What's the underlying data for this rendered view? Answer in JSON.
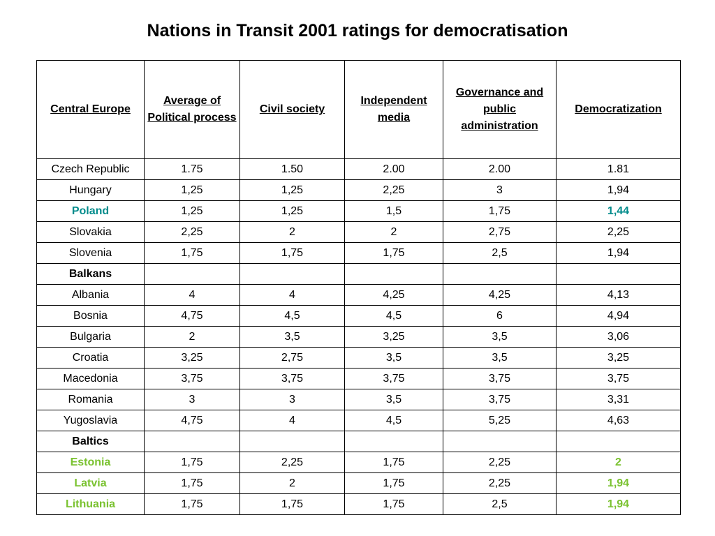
{
  "title": "Nations in Transit 2001 ratings for democratisation",
  "colors": {
    "poland": "#008b8b",
    "baltic": "#7ac230"
  },
  "table": {
    "headers": [
      "Central Europe",
      "Average of Political process",
      "Civil society",
      "Independent media",
      "Governance and public administration",
      "Democratization"
    ],
    "rows": [
      {
        "type": "data",
        "cells": [
          "Czech Republic",
          "1.75",
          "1.50",
          "2.00",
          "2.00",
          "1.81"
        ]
      },
      {
        "type": "data",
        "cells": [
          "Hungary",
          "1,25",
          "1,25",
          "2,25",
          "3",
          "1,94"
        ]
      },
      {
        "type": "data",
        "highlight": "poland",
        "cells": [
          "Poland",
          "1,25",
          "1,25",
          "1,5",
          "1,75",
          "1,44"
        ]
      },
      {
        "type": "data",
        "cells": [
          "Slovakia",
          "2,25",
          "2",
          "2",
          "2,75",
          "2,25"
        ]
      },
      {
        "type": "data",
        "cells": [
          "Slovenia",
          "1,75",
          "1,75",
          "1,75",
          "2,5",
          "1,94"
        ]
      },
      {
        "type": "group",
        "cells": [
          "Balkans",
          "",
          "",
          "",
          "",
          ""
        ]
      },
      {
        "type": "data",
        "cells": [
          "Albania",
          "4",
          "4",
          "4,25",
          "4,25",
          "4,13"
        ]
      },
      {
        "type": "data",
        "cells": [
          "Bosnia",
          "4,75",
          "4,5",
          "4,5",
          "6",
          "4,94"
        ]
      },
      {
        "type": "data",
        "cells": [
          "Bulgaria",
          "2",
          "3,5",
          "3,25",
          "3,5",
          "3,06"
        ]
      },
      {
        "type": "data",
        "cells": [
          "Croatia",
          "3,25",
          "2,75",
          "3,5",
          "3,5",
          "3,25"
        ]
      },
      {
        "type": "data",
        "cells": [
          "Macedonia",
          "3,75",
          "3,75",
          "3,75",
          "3,75",
          "3,75"
        ]
      },
      {
        "type": "data",
        "cells": [
          "Romania",
          "3",
          "3",
          "3,5",
          "3,75",
          "3,31"
        ]
      },
      {
        "type": "data",
        "cells": [
          "Yugoslavia",
          "4,75",
          "4",
          "4,5",
          "5,25",
          "4,63"
        ]
      },
      {
        "type": "group",
        "cells": [
          "Baltics",
          "",
          "",
          "",
          "",
          ""
        ]
      },
      {
        "type": "data",
        "highlight": "baltic",
        "cells": [
          "Estonia",
          "1,75",
          "2,25",
          "1,75",
          "2,25",
          "2"
        ]
      },
      {
        "type": "data",
        "highlight": "baltic",
        "cells": [
          "Latvia",
          "1,75",
          "2",
          "1,75",
          "2,25",
          "1,94"
        ]
      },
      {
        "type": "data",
        "highlight": "baltic",
        "cells": [
          "Lithuania",
          "1,75",
          "1,75",
          "1,75",
          "2,5",
          "1,94"
        ]
      }
    ]
  }
}
